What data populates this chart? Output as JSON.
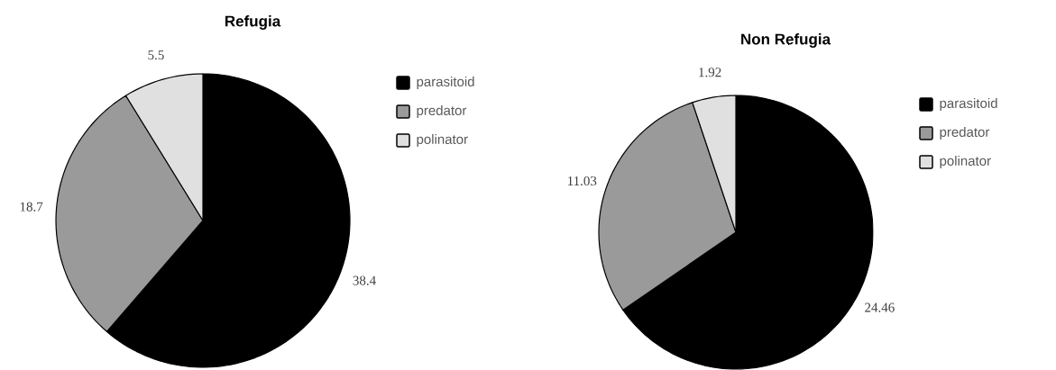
{
  "chart_data": [
    {
      "type": "pie",
      "title": "Refugia",
      "categories": [
        "parasitoid",
        "predator",
        "polinator"
      ],
      "values": [
        38.4,
        18.7,
        5.5
      ],
      "colors": [
        "#000000",
        "#9a9a9a",
        "#e0e0e0"
      ],
      "data_labels": true,
      "legend": "top right"
    },
    {
      "type": "pie",
      "title": "Non Refugia",
      "categories": [
        "parasitoid",
        "predator",
        "polinator"
      ],
      "values": [
        24.46,
        11.03,
        1.92
      ],
      "colors": [
        "#000000",
        "#9a9a9a",
        "#e0e0e0"
      ],
      "data_labels": true,
      "legend": "top right"
    }
  ]
}
